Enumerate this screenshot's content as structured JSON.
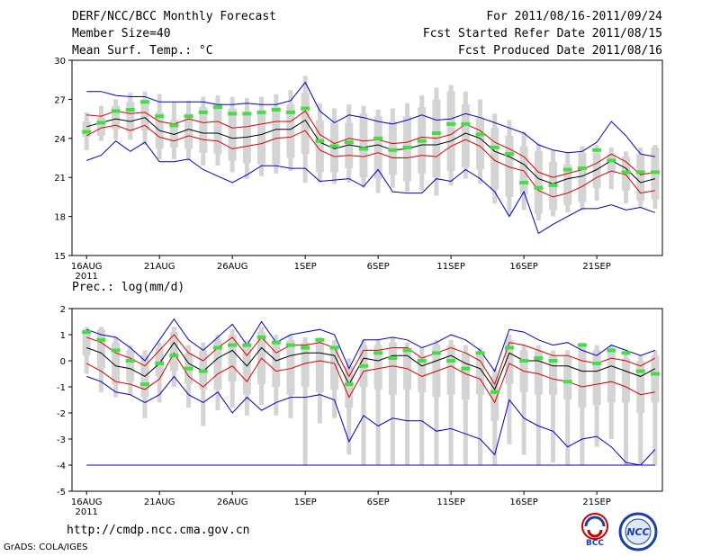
{
  "header": {
    "title": "DERF/NCC/BCC Monthly Forecast",
    "member_size": "Member Size=40",
    "variable": "Mean Surf. Temp.: °C",
    "period": "For 2011/08/16-2011/09/24",
    "refer_date": "Fcst Started Refer Date 2011/08/15",
    "produced_date": "Fcst Produced Date 2011/08/16"
  },
  "footer": {
    "url": "http://cmdp.ncc.cma.gov.cn",
    "grads": "GrADS: COLA/IGES",
    "logo_bcc": "BCC",
    "logo_ncc": "NCC"
  },
  "colors": {
    "envelope": "#0000cc",
    "spread": "#dd0000",
    "mean": "#000000",
    "box": "#d4d4d4",
    "marker": "#44dd44"
  },
  "chart_data": [
    {
      "type": "box-plume",
      "title": "Mean Surf. Temp.: °C",
      "ylim": [
        15,
        30
      ],
      "yticks": [
        15,
        18,
        21,
        24,
        27,
        30
      ],
      "x_tick_labels": [
        "16AUG",
        "21AUG",
        "26AUG",
        "1SEP",
        "6SEP",
        "11SEP",
        "16SEP",
        "21SEP"
      ],
      "x_tick_days": [
        1,
        6,
        11,
        16,
        21,
        26,
        31,
        36
      ],
      "x_sublabel": "2011",
      "days": 40,
      "series": {
        "max": [
          27.6,
          27.6,
          27.3,
          27.2,
          27.2,
          26.8,
          26.8,
          26.8,
          26.8,
          26.6,
          26.6,
          26.7,
          26.6,
          26.6,
          26.9,
          28.3,
          26.1,
          25.2,
          25.8,
          25.6,
          25.3,
          25.1,
          25.4,
          25.8,
          25.4,
          25.5,
          25.9,
          25.6,
          25.2,
          24.8,
          24.4,
          23.5,
          23.1,
          22.9,
          23.0,
          23.7,
          25.3,
          24.2,
          22.8,
          22.6
        ],
        "upper": [
          25.8,
          25.7,
          26.1,
          25.9,
          26.0,
          25.3,
          25.1,
          25.5,
          25.2,
          25.3,
          24.8,
          24.9,
          25.1,
          25.3,
          25.3,
          26.1,
          24.3,
          23.6,
          24.0,
          23.8,
          23.9,
          23.6,
          23.7,
          24.1,
          24.0,
          24.3,
          25.1,
          24.6,
          23.7,
          23.2,
          22.6,
          21.4,
          21.0,
          21.3,
          21.6,
          22.1,
          22.8,
          22.2,
          21.2,
          21.4
        ],
        "mean": [
          24.9,
          25.2,
          25.5,
          25.3,
          25.6,
          24.6,
          24.3,
          24.7,
          24.4,
          24.4,
          24.0,
          24.1,
          24.3,
          24.7,
          24.7,
          25.4,
          23.7,
          23.2,
          23.5,
          23.3,
          23.5,
          23.1,
          23.2,
          23.5,
          23.5,
          23.8,
          24.4,
          24.0,
          23.0,
          22.6,
          22.0,
          20.9,
          20.5,
          20.9,
          21.1,
          21.6,
          22.3,
          21.7,
          20.6,
          20.9
        ],
        "lower": [
          24.2,
          24.8,
          25.0,
          24.6,
          25.0,
          24.1,
          23.8,
          24.2,
          23.9,
          23.8,
          23.2,
          23.4,
          23.6,
          24.0,
          24.1,
          24.6,
          23.1,
          22.6,
          22.7,
          22.6,
          22.9,
          22.5,
          22.5,
          22.7,
          22.6,
          23.4,
          23.9,
          23.4,
          22.3,
          21.8,
          21.5,
          20.0,
          19.5,
          19.8,
          20.3,
          21.0,
          21.5,
          21.2,
          19.8,
          20.0
        ],
        "min": [
          22.3,
          22.7,
          23.8,
          23.0,
          23.7,
          22.2,
          22.2,
          22.4,
          21.6,
          21.1,
          20.6,
          21.2,
          21.9,
          21.9,
          21.7,
          21.7,
          20.7,
          20.8,
          20.9,
          20.3,
          21.6,
          19.9,
          19.8,
          19.8,
          20.9,
          20.7,
          21.6,
          20.9,
          19.9,
          18.0,
          19.9,
          16.7,
          17.4,
          18.0,
          18.6,
          18.6,
          18.9,
          18.5,
          18.7,
          18.3
        ],
        "box_high": [
          25.3,
          25.6,
          26.5,
          26.8,
          27.0,
          26.0,
          25.4,
          25.9,
          26.4,
          26.7,
          26.3,
          25.9,
          26.1,
          26.4,
          26.6,
          27.5,
          25.4,
          25.2,
          25.2,
          25.9,
          25.7,
          25.3,
          25.7,
          26.4,
          27.0,
          27.6,
          26.6,
          25.6,
          24.8,
          24.2,
          23.4,
          23.0,
          22.2,
          22.0,
          22.9,
          22.9,
          22.8,
          22.6,
          22.8,
          23.3
        ],
        "box_low": [
          24.1,
          24.2,
          24.7,
          24.5,
          24.6,
          23.2,
          23.3,
          23.2,
          22.9,
          22.8,
          22.3,
          22.1,
          22.0,
          22.0,
          22.5,
          22.8,
          21.4,
          21.4,
          21.7,
          21.0,
          20.9,
          21.2,
          20.7,
          21.3,
          21.0,
          21.5,
          21.8,
          21.6,
          20.1,
          19.5,
          19.7,
          18.2,
          18.5,
          18.9,
          19.1,
          20.2,
          21.3,
          20.0,
          19.2,
          19.3
        ],
        "box_outer_high": [
          26.0,
          26.5,
          27.0,
          27.5,
          27.6,
          27.4,
          26.8,
          26.9,
          27.2,
          27.3,
          27.2,
          27.1,
          27.2,
          27.4,
          27.7,
          28.8,
          26.7,
          26.3,
          26.6,
          26.5,
          26.2,
          26.3,
          26.7,
          27.3,
          27.9,
          28.1,
          27.6,
          27.0,
          25.9,
          25.4,
          24.5,
          23.6,
          23.1,
          22.9,
          23.4,
          23.5,
          23.3,
          23.0,
          23.3,
          23.5
        ],
        "box_outer_low": [
          23.1,
          23.8,
          23.9,
          23.9,
          23.5,
          22.4,
          22.4,
          22.3,
          21.9,
          21.9,
          21.4,
          20.9,
          21.1,
          21.3,
          21.5,
          20.6,
          20.6,
          20.5,
          20.6,
          20.2,
          19.8,
          20.2,
          19.9,
          20.0,
          19.6,
          20.4,
          20.9,
          20.5,
          19.0,
          18.1,
          18.5,
          17.7,
          18.0,
          18.3,
          18.5,
          19.2,
          20.1,
          19.0,
          18.7,
          18.6
        ],
        "marker": [
          24.5,
          25.2,
          26.1,
          26.2,
          26.8,
          25.7,
          25.0,
          25.7,
          26.0,
          26.4,
          25.9,
          25.9,
          26.0,
          26.2,
          26.0,
          26.3,
          23.8,
          23.4,
          23.7,
          23.2,
          24.0,
          23.1,
          23.3,
          23.8,
          24.4,
          25.1,
          25.1,
          24.3,
          23.3,
          22.8,
          20.6,
          20.2,
          20.4,
          21.6,
          21.7,
          23.1,
          22.3,
          21.4,
          21.4,
          21.4
        ]
      }
    },
    {
      "type": "box-plume",
      "title": "Prec.: log(mm/d)",
      "ylim": [
        -5,
        2
      ],
      "yticks": [
        -5,
        -4,
        -3,
        -2,
        -1,
        0,
        1,
        2
      ],
      "x_tick_labels": [
        "16AUG",
        "21AUG",
        "26AUG",
        "1SEP",
        "6SEP",
        "11SEP",
        "16SEP",
        "21SEP"
      ],
      "x_tick_days": [
        1,
        6,
        11,
        16,
        21,
        26,
        31,
        36
      ],
      "x_sublabel": "2011",
      "days": 40,
      "series": {
        "max": [
          1.2,
          1.0,
          0.9,
          0.5,
          0.0,
          0.8,
          1.6,
          0.8,
          0.4,
          0.9,
          1.4,
          0.6,
          1.5,
          0.7,
          1.0,
          1.1,
          1.2,
          1.0,
          -0.3,
          0.8,
          0.8,
          0.9,
          0.8,
          0.5,
          0.7,
          1.0,
          0.8,
          0.4,
          -0.4,
          1.2,
          1.1,
          0.8,
          0.6,
          0.7,
          0.4,
          0.2,
          0.6,
          0.4,
          0.2,
          0.4
        ],
        "upper": [
          0.9,
          0.7,
          0.3,
          0.1,
          -0.2,
          0.4,
          1.0,
          0.3,
          0.0,
          0.5,
          0.9,
          0.2,
          0.9,
          0.3,
          0.6,
          0.6,
          0.7,
          0.5,
          -0.6,
          0.4,
          0.4,
          0.5,
          0.5,
          0.1,
          0.3,
          0.5,
          0.3,
          0.0,
          -0.9,
          0.7,
          0.6,
          0.4,
          0.2,
          0.2,
          0.0,
          -0.1,
          0.1,
          0.0,
          -0.2,
          0.1
        ],
        "mean": [
          0.5,
          0.3,
          -0.2,
          -0.3,
          -0.6,
          -0.1,
          0.7,
          -0.1,
          -0.4,
          0.1,
          0.4,
          -0.2,
          0.5,
          0.0,
          0.2,
          0.3,
          0.3,
          0.2,
          -0.9,
          0.1,
          0.0,
          0.2,
          0.2,
          -0.2,
          0.0,
          0.2,
          -0.1,
          -0.3,
          -1.1,
          0.3,
          0.0,
          0.0,
          -0.2,
          -0.2,
          -0.4,
          -0.4,
          -0.2,
          -0.4,
          -0.6,
          -0.3
        ],
        "lower": [
          -0.1,
          -0.4,
          -0.8,
          -0.9,
          -1.1,
          -0.7,
          0.3,
          -0.6,
          -1.0,
          -0.5,
          -0.2,
          -0.8,
          0.1,
          -0.4,
          -0.3,
          -0.1,
          0.0,
          -0.1,
          -1.4,
          -0.4,
          -0.3,
          -0.2,
          -0.3,
          -0.6,
          -0.4,
          -0.2,
          -0.5,
          -0.7,
          -1.6,
          -0.1,
          -0.4,
          -0.5,
          -0.7,
          -0.8,
          -1.0,
          -0.9,
          -0.8,
          -1.0,
          -1.3,
          -1.2
        ],
        "min": [
          -0.6,
          -0.8,
          -1.2,
          -1.3,
          -1.6,
          -1.3,
          -0.6,
          -1.3,
          -1.6,
          -1.2,
          -2.0,
          -1.4,
          -1.9,
          -1.6,
          -1.4,
          -1.4,
          -1.3,
          -1.5,
          -3.1,
          -2.1,
          -2.5,
          -2.2,
          -2.3,
          -2.3,
          -2.7,
          -2.6,
          -2.8,
          -3.0,
          -3.6,
          -1.5,
          -2.2,
          -2.5,
          -2.7,
          -3.3,
          -3.0,
          -2.9,
          -3.3,
          -3.9,
          -4.0,
          -3.4
        ],
        "box_high": [
          1.2,
          1.2,
          0.7,
          0.4,
          0.2,
          0.5,
          1.1,
          0.3,
          0.4,
          0.8,
          1.0,
          0.6,
          1.1,
          0.7,
          0.8,
          0.7,
          0.7,
          0.6,
          -0.2,
          0.6,
          0.6,
          0.7,
          0.5,
          0.2,
          0.6,
          0.6,
          0.3,
          0.3,
          -0.6,
          0.8,
          0.4,
          0.4,
          0.2,
          0.2,
          0.5,
          0.4,
          0.4,
          0.1,
          0.0,
          0.2
        ],
        "box_low": [
          0.2,
          -0.3,
          -0.9,
          -0.8,
          -1.4,
          -0.6,
          -0.4,
          -0.9,
          -1.1,
          -1.1,
          -0.8,
          -1.3,
          -0.9,
          -1.0,
          -1.3,
          -1.0,
          -1.2,
          -1.1,
          -1.8,
          -1.0,
          -1.1,
          -1.3,
          -1.1,
          -1.2,
          -1.4,
          -1.3,
          -1.5,
          -1.3,
          -2.3,
          -0.9,
          -1.2,
          -1.3,
          -1.3,
          -1.5,
          -1.8,
          -1.7,
          -1.6,
          -1.6,
          -2.0,
          -1.6
        ],
        "box_outer_high": [
          1.3,
          1.3,
          0.9,
          0.6,
          0.4,
          0.7,
          1.3,
          0.6,
          0.7,
          1.0,
          1.2,
          0.8,
          1.3,
          1.0,
          1.0,
          0.9,
          0.9,
          0.8,
          0.1,
          0.8,
          0.8,
          0.9,
          0.7,
          0.5,
          0.8,
          0.8,
          0.6,
          0.5,
          -0.3,
          1.0,
          0.6,
          0.6,
          0.4,
          0.4,
          0.7,
          0.6,
          0.6,
          0.3,
          0.2,
          0.4
        ],
        "box_outer_low": [
          -0.5,
          -1.2,
          -1.4,
          -1.3,
          -2.2,
          -1.6,
          -1.0,
          -1.8,
          -2.5,
          -1.9,
          -1.8,
          -2.1,
          -1.7,
          -2.1,
          -2.2,
          -4.0,
          -2.4,
          -2.2,
          -3.6,
          -4.0,
          -4.0,
          -4.0,
          -4.0,
          -4.0,
          -4.0,
          -4.0,
          -4.0,
          -4.0,
          -4.0,
          -3.2,
          -3.6,
          -4.0,
          -3.9,
          -4.0,
          -4.0,
          -3.3,
          -3.0,
          -4.0,
          -4.0,
          -4.0
        ],
        "marker": [
          1.1,
          0.8,
          0.4,
          0.0,
          -0.9,
          -0.1,
          0.2,
          -0.3,
          -0.4,
          0.5,
          0.6,
          0.6,
          0.9,
          0.7,
          0.6,
          0.5,
          0.8,
          0.5,
          -0.9,
          -0.2,
          0.3,
          0.1,
          0.4,
          0.0,
          0.3,
          0.0,
          -0.3,
          0.3,
          -1.2,
          0.5,
          0.0,
          0.1,
          0.0,
          -0.8,
          0.6,
          -0.1,
          0.4,
          0.3,
          -0.4,
          -0.5
        ]
      },
      "reference_line": -4
    }
  ]
}
